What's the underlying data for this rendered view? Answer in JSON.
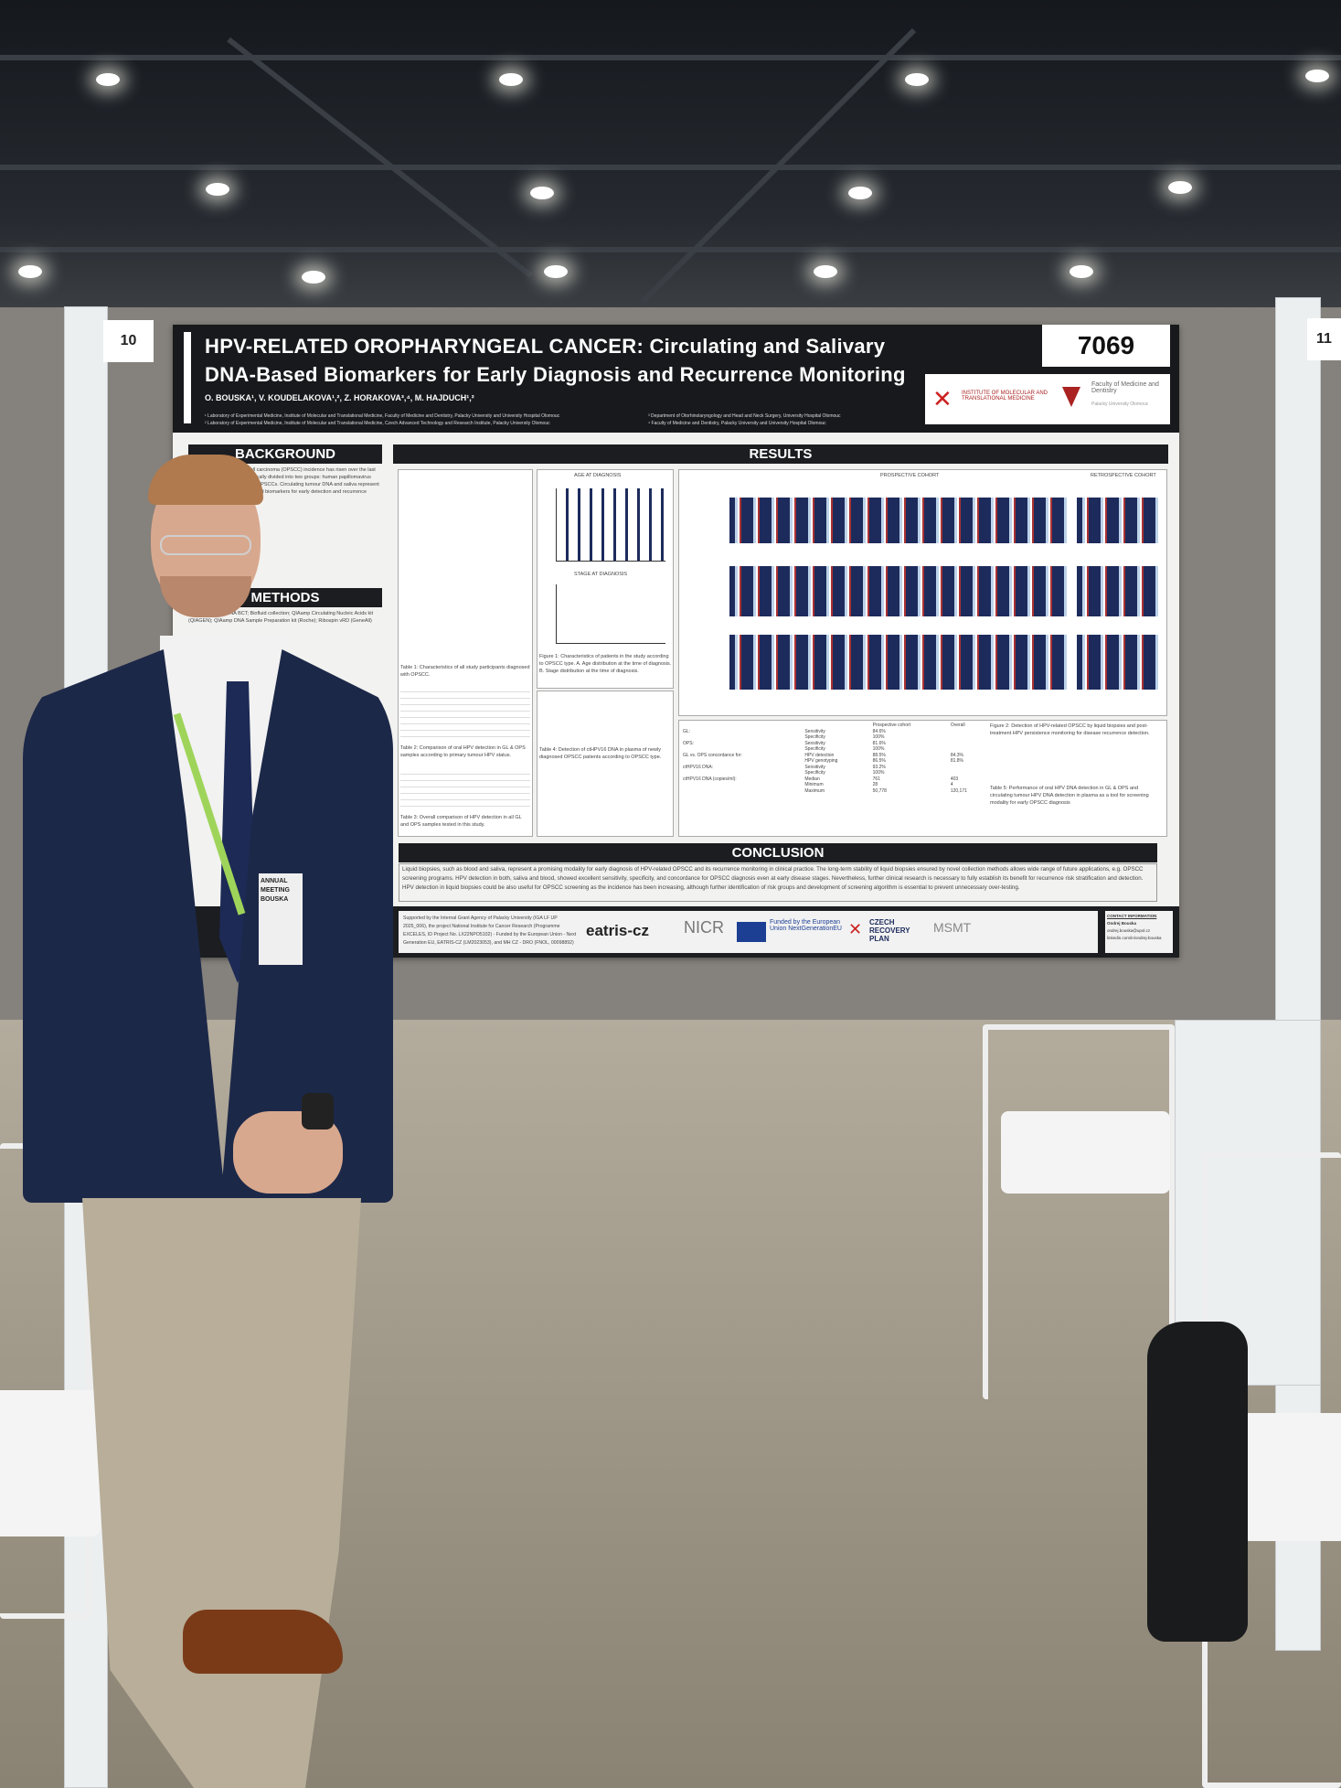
{
  "board": {
    "left_number": "10",
    "right_number": "11"
  },
  "poster": {
    "number": "7069",
    "title_line1": "HPV-RELATED OROPHARYNGEAL CANCER: Circulating and Salivary",
    "title_line2": "DNA-Based Biomarkers for Early Diagnosis and Recurrence Monitoring",
    "authors": "O. BOUSKA¹, V. KOUDELAKOVA¹,², Z. HORAKOVA³,⁴, M. HAJDUCH¹,²",
    "affiliations": [
      "¹ Laboratory of Experimental Medicine, Institute of Molecular and Translational Medicine, Faculty of Medicine and Dentistry, Palacky University and University Hospital Olomouc",
      "² Laboratory of Experimental Medicine, Institute of Molecular and Translational Medicine, Czech Advanced Technology and Research Institute, Palacky University Olomouc",
      "³ Department of Otorhinolaryngology and Head and Neck Surgery, University Hospital Olomouc",
      "⁴ Faculty of Medicine and Dentistry, Palacky University and University Hospital Olomouc"
    ],
    "logo_left": "INSTITUTE OF MOLECULAR AND TRANSLATIONAL MEDICINE",
    "logo_right": "Faculty of Medicine and Dentistry",
    "logo_right_sub": "Palacky University Olomouc",
    "sections": {
      "background": "BACKGROUND",
      "methods": "METHODS",
      "results": "RESULTS",
      "conclusion": "CONCLUSION"
    },
    "background_text": "Oropharyngeal squamous cell carcinoma (OPSCC) incidence has risen over the last decades. OPSCCs are etiologically divided into two groups: human papillomavirus (HPV) related and non-related OPSCCs. Circulating tumour DNA and saliva represent a promising source of DNA-based biomarkers for early detection and recurrence monitoring in clinical practice.",
    "methods_text": "Streck Cell-Free DNA BCT; Biofluid collection; QIAamp Circulating Nucleic Acids kit (QIAGEN); QIAamp DNA Sample Preparation kit (Roche); Ribospin vRD (GeneAll)",
    "table_captions": [
      "Table 1: Characteristics of all study participants diagnosed with OPSCC.",
      "Figure 1: Characteristics of patients in the study according to OPSCC type. A. Age distribution at the time of diagnosis. B. Stage distribution at the time of diagnosis.",
      "Figure 2: Detection of HPV-related OPSCC by liquid biopsies and post-treatment HPV persistence monitoring for disease recurrence detection.",
      "Table 2: Comparison of oral HPV detection in GL & OPS samples according to primary tumour HPV status.",
      "Table 3: Overall comparison of HPV detection in all GL and OPS samples tested in this study.",
      "Table 4: Detection of ctHPV16 DNA in plasma of newly diagnosed OPSCC patients according to OPSCC type.",
      "Table 5: Performance of oral HPV DNA detection in GL & OPS and circulating tumour HPV DNA detection in plasma as a tool for screening modality for early OPSCC diagnosis"
    ],
    "chart_labels": {
      "age": "AGE AT DIAGNOSIS",
      "stage": "STAGE AT DIAGNOSIS",
      "prospective": "PROSPECTIVE COHORT",
      "retrospective": "RETROSPECTIVE COHORT"
    },
    "perf_table": {
      "headers": [
        "",
        "",
        "Prospective cohort",
        "Overall"
      ],
      "rows": [
        [
          "GL:",
          "Sensitivity",
          "84.6%",
          ""
        ],
        [
          "",
          "Specificity",
          "100%",
          ""
        ],
        [
          "OPS:",
          "Sensitivity",
          "81.6%",
          ""
        ],
        [
          "",
          "Specificity",
          "100%",
          ""
        ],
        [
          "GL vs. OPS concordance for:",
          "HPV detection",
          "88.5%",
          "84.3%"
        ],
        [
          "",
          "HPV genotyping",
          "86.5%",
          "81.8%"
        ],
        [
          "ctHPV16 DNA:",
          "Sensitivity",
          "93.2%",
          ""
        ],
        [
          "",
          "Specificity",
          "100%",
          ""
        ],
        [
          "ctHPV16 DNA (copies/ml):",
          "Median",
          "761",
          "403"
        ],
        [
          "",
          "Minimum",
          "28",
          "4"
        ],
        [
          "",
          "Maximum",
          "50,778",
          "120,171"
        ]
      ]
    },
    "conclusion_text": "Liquid biopsies, such as blood and saliva, represent a promising modality for early diagnosis of HPV-related OPSCC and its recurrence monitoring in clinical practice. The long-term stability of liquid biopsies ensured by novel collection methods allows wide range of future applications, e.g. OPSCC screening programs. HPV detection in both, saliva and blood, showed excellent sensitivity, specificity, and concordance for OPSCC diagnosis even at early disease stages. Nevertheless, further clinical research is necessary to fully establish its benefit for recurrence risk stratification and detection. HPV detection in liquid biopsies could be also useful for OPSCC screening as the incidence has been increasing, although further identification of risk groups and development of screening algorithm is essential to prevent unnecessary over-testing.",
    "funding_text": "Supported by the Internal Grant Agency of Palacky University (IGA LF UP 2025_006), the project National Institute for Cancer Research (Programme EXCELES, ID Project No. LX22NPO5102) - Funded by the European Union - Next Generation EU, EATRIS-CZ (LM2023053), and MH CZ - DRO (FNOL, 00098892)",
    "sponsors": [
      "eatris-cz",
      "NICR",
      "Funded by the European Union NextGenerationEU",
      "CZECH RECOVERY PLAN",
      "MSMT"
    ],
    "contact": {
      "heading": "CONTACT INFORMATION",
      "name": "Ondrej Bouska",
      "email": "ondrej.bouska@upol.cz",
      "linkedin": "linkedin.com/in/ondrej-bouska"
    }
  },
  "badge": {
    "event": "ANNUAL MEETING",
    "name": "BOUSKA"
  }
}
